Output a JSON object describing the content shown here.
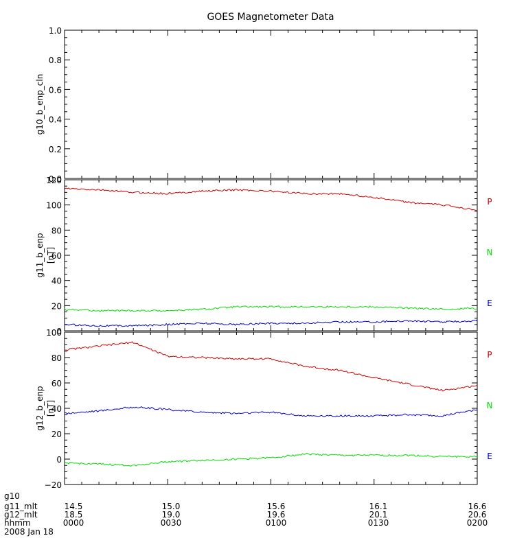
{
  "title": "GOES Magnetometer Data",
  "chart_data": [
    {
      "type": "line",
      "ylabel": "g10_b_enp_cln",
      "unit": "",
      "ylim": [
        0,
        1
      ],
      "yticks": [
        0.0,
        0.2,
        0.4,
        0.6,
        0.8,
        1.0
      ],
      "ytick_labels": [
        "0.0",
        "0.2",
        "0.4",
        "0.6",
        "0.8",
        "1.0"
      ],
      "series": []
    },
    {
      "type": "line",
      "ylabel": "g11_b_enp",
      "unit": "[nT]",
      "ylim": [
        0,
        120
      ],
      "yticks": [
        0,
        20,
        40,
        60,
        80,
        100,
        120
      ],
      "ytick_labels": [
        "0",
        "20",
        "40",
        "60",
        "80",
        "100",
        "120"
      ],
      "x": [
        "0000",
        "0010",
        "0020",
        "0030",
        "0040",
        "0050",
        "0100",
        "0110",
        "0120",
        "0130",
        "0140",
        "0150",
        "0200"
      ],
      "series": [
        {
          "name": "P",
          "color": "#cc0000",
          "values": [
            113,
            112,
            110,
            109,
            111,
            112,
            111,
            109,
            109,
            106,
            102,
            100,
            96
          ]
        },
        {
          "name": "N",
          "color": "#00dd00",
          "values": [
            17,
            16,
            16,
            16,
            17,
            19,
            19,
            19,
            19,
            19,
            18,
            17,
            18
          ]
        },
        {
          "name": "E",
          "color": "#0000cc",
          "values": [
            5,
            4,
            4,
            5,
            6,
            5,
            6,
            6,
            7,
            7,
            8,
            7,
            8
          ]
        }
      ],
      "legend_position": "right"
    },
    {
      "type": "line",
      "ylabel": "g12_b_enp",
      "unit": "[nT]",
      "ylim": [
        -20,
        100
      ],
      "yticks": [
        -20,
        0,
        20,
        40,
        60,
        80,
        100
      ],
      "ytick_labels": [
        "−20",
        "0",
        "20",
        "40",
        "60",
        "80",
        "100"
      ],
      "x": [
        "0000",
        "0010",
        "0020",
        "0030",
        "0040",
        "0050",
        "0100",
        "0110",
        "0120",
        "0130",
        "0140",
        "0150",
        "0200"
      ],
      "series": [
        {
          "name": "P",
          "color": "#cc0000",
          "values": [
            86,
            89,
            92,
            81,
            80,
            79,
            79,
            73,
            70,
            64,
            59,
            54,
            58
          ]
        },
        {
          "name": "N",
          "color": "#00dd00",
          "values": [
            -3,
            -4,
            -5,
            -2,
            -1,
            0,
            1,
            4,
            3,
            3,
            3,
            2,
            2
          ]
        },
        {
          "name": "E",
          "color": "#0000cc",
          "values": [
            36,
            38,
            41,
            39,
            37,
            36,
            37,
            34,
            34,
            34,
            35,
            34,
            39
          ]
        }
      ],
      "legend_position": "right"
    }
  ],
  "xaxis": {
    "rows": [
      {
        "label": "g10",
        "values": [
          "",
          "",
          "",
          "",
          ""
        ]
      },
      {
        "label": "g11_mlt",
        "values": [
          "14.5",
          "15.0",
          "15.6",
          "16.1",
          "16.6"
        ]
      },
      {
        "label": "g12_mlt",
        "values": [
          "18.5",
          "19.0",
          "19.6",
          "20.1",
          "20.6"
        ]
      },
      {
        "label": "hhmm",
        "values": [
          "0000",
          "0030",
          "0100",
          "0130",
          "0200"
        ]
      }
    ],
    "date": "2008 Jan 18"
  }
}
